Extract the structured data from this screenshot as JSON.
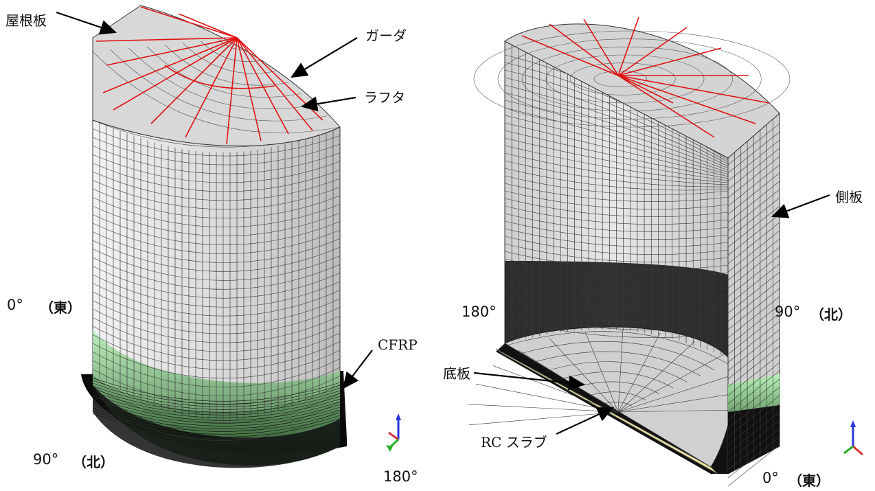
{
  "labels": {
    "roof": "屋根板",
    "girder": "ガーダ",
    "rafter": "ラフタ",
    "cfrp": "CFRP",
    "side": "側板",
    "bottom": "底板",
    "rc_slab": "RC スラブ"
  },
  "orientation": {
    "left": {
      "east_deg": "0°",
      "east_dir": "（東）",
      "north_deg": "90°",
      "north_dir": "（北）",
      "west_deg": "180°"
    },
    "right": {
      "west_deg": "180°",
      "north_deg": "90°",
      "north_dir": "（北）",
      "east_deg": "0°",
      "east_dir": "（東）"
    }
  },
  "colors": {
    "shell": "#d6d6d6",
    "mesh": "#3a3a3a",
    "girder": "#e01010",
    "cfrp": "#7fd97f",
    "slab": "#e8e0a0",
    "dark_mesh": "#0a0a0a"
  },
  "icons": [
    "axis-triad-icon"
  ]
}
